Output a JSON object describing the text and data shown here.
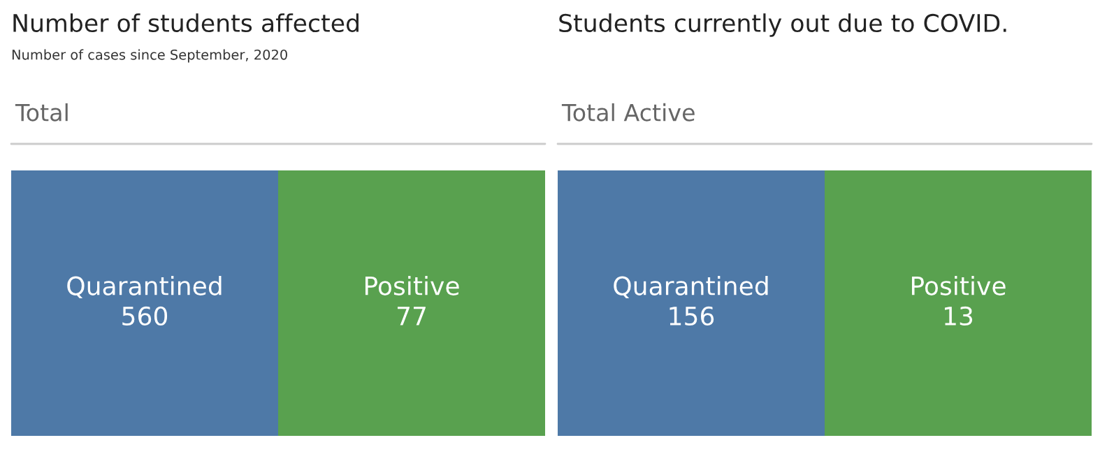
{
  "chart_data": [
    {
      "type": "other",
      "title": "Number of students affected",
      "subtitle": "Number of cases since September, 2020",
      "annotations": [
        "Total"
      ],
      "categories": [
        "Quarantined",
        "Positive"
      ],
      "values": [
        560,
        77
      ],
      "colors": [
        "#4e79a7",
        "#59a14f"
      ],
      "data_labels": true
    },
    {
      "type": "other",
      "title": "Students currently out due to COVID.",
      "annotations": [
        "Total Active"
      ],
      "categories": [
        "Quarantined",
        "Positive"
      ],
      "values": [
        156,
        13
      ],
      "colors": [
        "#4e79a7",
        "#59a14f"
      ],
      "data_labels": true
    }
  ]
}
